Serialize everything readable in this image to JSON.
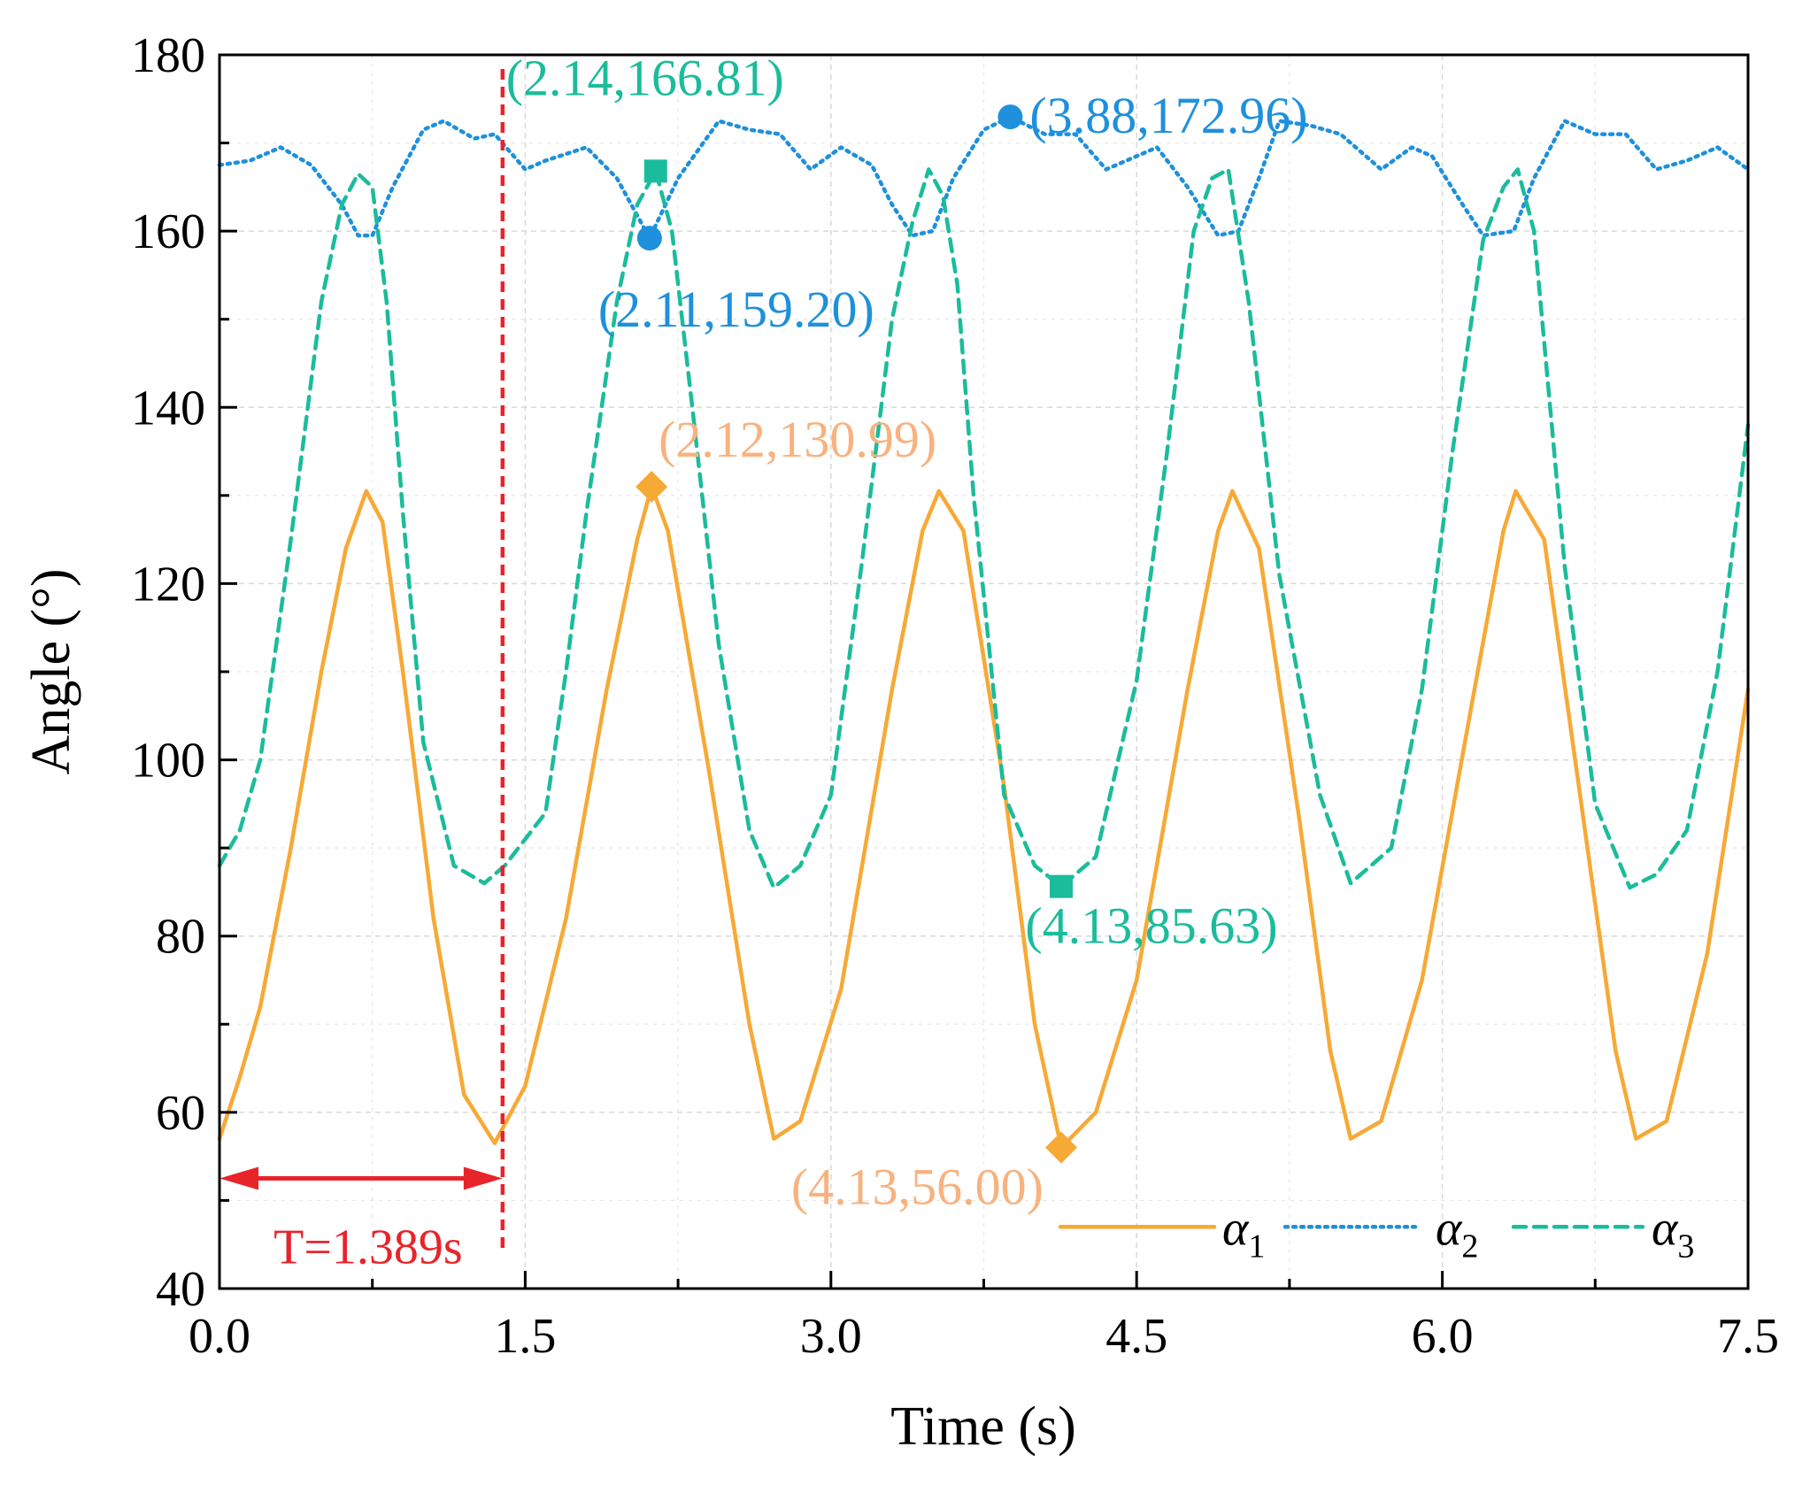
{
  "chart_data": {
    "type": "line",
    "xlabel": "Time (s)",
    "ylabel": "Angle (°)",
    "xlim": [
      0,
      7.5
    ],
    "ylim": [
      40,
      180
    ],
    "xticks": [
      0,
      1.5,
      3.0,
      4.5,
      6.0,
      7.5
    ],
    "xtick_labels": [
      "0.0",
      "1.5",
      "3.0",
      "4.5",
      "6.0",
      "7.5"
    ],
    "yticks": [
      40,
      60,
      80,
      100,
      120,
      140,
      160,
      180
    ],
    "ytick_labels": [
      "40",
      "60",
      "80",
      "100",
      "120",
      "140",
      "160",
      "180"
    ],
    "grid": true,
    "legend_position": "bottom-right",
    "series": [
      {
        "name": "α1",
        "name_base": "α",
        "name_sub": "1",
        "color": "#F7A936",
        "style": "solid",
        "x": [
          0.0,
          0.1,
          0.2,
          0.35,
          0.5,
          0.62,
          0.72,
          0.8,
          0.9,
          1.05,
          1.2,
          1.35,
          1.5,
          1.7,
          1.9,
          2.05,
          2.12,
          2.2,
          2.4,
          2.6,
          2.72,
          2.85,
          3.05,
          3.3,
          3.45,
          3.53,
          3.65,
          3.85,
          4.0,
          4.13,
          4.3,
          4.5,
          4.75,
          4.9,
          4.97,
          5.1,
          5.3,
          5.45,
          5.55,
          5.7,
          5.9,
          6.15,
          6.3,
          6.36,
          6.5,
          6.7,
          6.85,
          6.95,
          7.1,
          7.3,
          7.5
        ],
        "values": [
          57,
          64,
          72,
          90,
          110,
          124,
          130.5,
          127,
          110,
          82,
          62,
          56.5,
          63,
          82,
          108,
          125,
          130.99,
          126,
          99,
          70,
          57,
          59,
          74,
          108,
          126,
          130.5,
          126,
          97,
          70,
          56.0,
          60,
          75,
          108,
          126,
          130.5,
          124,
          93,
          67,
          57,
          59,
          75,
          107,
          126,
          130.5,
          125,
          92,
          67,
          57,
          59,
          78,
          108
        ]
      },
      {
        "name": "α2",
        "name_base": "α",
        "name_sub": "2",
        "color": "#1E90DC",
        "style": "dotted",
        "x": [
          0.0,
          0.15,
          0.3,
          0.45,
          0.6,
          0.68,
          0.75,
          0.85,
          1.0,
          1.1,
          1.25,
          1.35,
          1.5,
          1.6,
          1.8,
          1.95,
          2.11,
          2.25,
          2.45,
          2.6,
          2.75,
          2.9,
          3.05,
          3.2,
          3.3,
          3.4,
          3.5,
          3.6,
          3.75,
          3.88,
          4.05,
          4.2,
          4.35,
          4.45,
          4.6,
          4.75,
          4.9,
          5.0,
          5.1,
          5.2,
          5.35,
          5.5,
          5.7,
          5.85,
          5.95,
          6.1,
          6.2,
          6.35,
          6.45,
          6.6,
          6.75,
          6.9,
          7.05,
          7.2,
          7.35,
          7.5
        ],
        "values": [
          167.5,
          168,
          169.5,
          167.5,
          163,
          159.5,
          159.5,
          165,
          171.5,
          172.5,
          170.5,
          171,
          167,
          168,
          169.5,
          166,
          159.2,
          166,
          172.5,
          171.5,
          171,
          167,
          169.5,
          167.5,
          163,
          159.5,
          160,
          166,
          171.5,
          172.96,
          171,
          171,
          167,
          168,
          169.5,
          165,
          159.5,
          160,
          166,
          172.5,
          172,
          171,
          167,
          169.5,
          168.5,
          163,
          159.5,
          160,
          166,
          172.5,
          171,
          171,
          167,
          168,
          169.5,
          167
        ]
      },
      {
        "name": "α3",
        "name_base": "α",
        "name_sub": "3",
        "color": "#1BBC9B",
        "style": "dashed",
        "x": [
          0.0,
          0.1,
          0.2,
          0.35,
          0.5,
          0.6,
          0.68,
          0.75,
          0.82,
          0.9,
          1.0,
          1.15,
          1.3,
          1.4,
          1.5,
          1.6,
          1.7,
          1.8,
          1.95,
          2.05,
          2.14,
          2.22,
          2.32,
          2.45,
          2.6,
          2.72,
          2.85,
          3.0,
          3.15,
          3.3,
          3.4,
          3.48,
          3.55,
          3.62,
          3.7,
          3.85,
          4.0,
          4.13,
          4.3,
          4.5,
          4.65,
          4.78,
          4.87,
          4.95,
          5.05,
          5.2,
          5.4,
          5.55,
          5.65,
          5.75,
          5.9,
          6.05,
          6.2,
          6.3,
          6.37,
          6.45,
          6.6,
          6.75,
          6.92,
          7.05,
          7.2,
          7.35,
          7.5
        ],
        "values": [
          88,
          92,
          100,
          125,
          152,
          163,
          166.5,
          165,
          152,
          128,
          102,
          88,
          86,
          88,
          91,
          94,
          110,
          128,
          152,
          163,
          166.81,
          160,
          140,
          113,
          92,
          85.5,
          88,
          96,
          122,
          150,
          161,
          167,
          164,
          154,
          130,
          96,
          88,
          85.63,
          89,
          109,
          135,
          160,
          166,
          167,
          152,
          121,
          96,
          86,
          88,
          90,
          108,
          135,
          159,
          165,
          167,
          160,
          122,
          95,
          85.5,
          87,
          92,
          110,
          138
        ]
      }
    ],
    "reference_line": {
      "x": 1.389,
      "color": "#E8242B",
      "span_x": [
        0,
        1.389
      ],
      "span_y": 52.5,
      "label": "T=1.389s"
    },
    "annotations": [
      {
        "series": "α3",
        "marker": "square",
        "x": 2.14,
        "y": 166.81,
        "label": "(2.14,166.81)",
        "color": "#1BBC9B",
        "label_color": "#1BBC9B",
        "anchor": "above"
      },
      {
        "series": "α2",
        "marker": "circle",
        "x": 2.11,
        "y": 159.2,
        "label": "(2.11,159.20)",
        "color": "#1E90DC",
        "label_color": "#1E90DC",
        "anchor": "below"
      },
      {
        "series": "α2",
        "marker": "circle",
        "x": 3.88,
        "y": 172.96,
        "label": "(3.88,172.96)",
        "color": "#1E90DC",
        "label_color": "#1E90DC",
        "anchor": "right"
      },
      {
        "series": "α1",
        "marker": "diamond",
        "x": 2.12,
        "y": 130.99,
        "label": "(2.12,130.99)",
        "color": "#F7A936",
        "label_color": "#F8B27E",
        "anchor": "above"
      },
      {
        "series": "α3",
        "marker": "square",
        "x": 4.13,
        "y": 85.63,
        "label": "(4.13,85.63)",
        "color": "#1BBC9B",
        "label_color": "#1BBC9B",
        "anchor": "below"
      },
      {
        "series": "α1",
        "marker": "diamond",
        "x": 4.13,
        "y": 56.0,
        "label": "(4.13,56.00)",
        "color": "#F7A936",
        "label_color": "#F8B27E",
        "anchor": "below-left"
      }
    ]
  }
}
